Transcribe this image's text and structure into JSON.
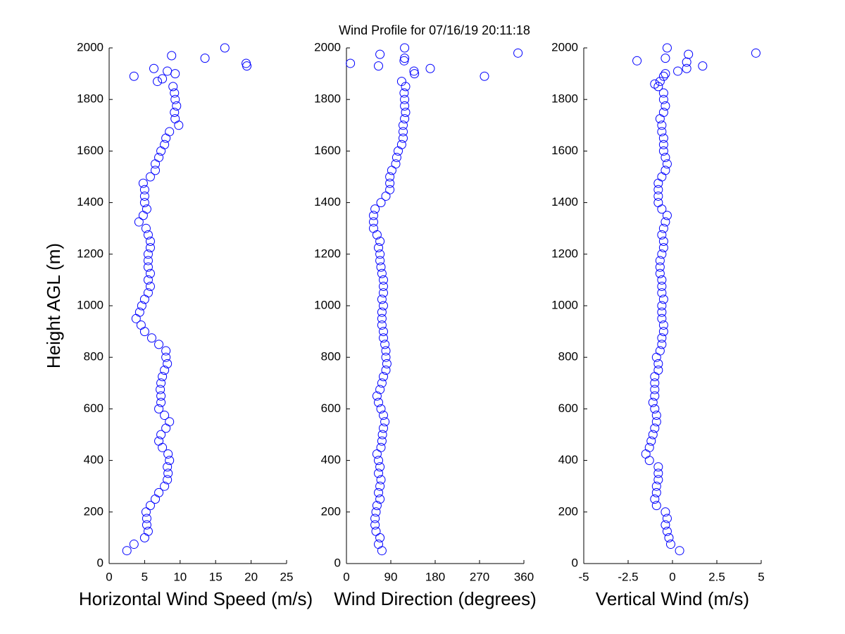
{
  "chart_data": [
    {
      "type": "scatter",
      "title": "Wind Profile for  07/16/19 20:11:18",
      "ylabel": "Height AGL (m)",
      "xlabel": "Horizontal Wind Speed (m/s)",
      "color": "#0000ff",
      "xlim": [
        0,
        25
      ],
      "xticks": [
        0,
        5,
        10,
        15,
        20,
        25
      ],
      "ylim": [
        0,
        2000
      ],
      "yticks": [
        0,
        200,
        400,
        600,
        800,
        1000,
        1200,
        1400,
        1600,
        1800,
        2000
      ],
      "x": [
        2.5,
        3.5,
        5,
        5.5,
        5.3,
        5.3,
        5.2,
        5.8,
        6.5,
        7,
        7.8,
        8.2,
        8.3,
        8.2,
        8.5,
        8.3,
        7.5,
        7,
        7.3,
        8,
        8.5,
        7.8,
        7,
        7.3,
        7.3,
        7.2,
        7.3,
        7.5,
        7.8,
        8.2,
        8,
        8,
        7,
        6,
        5,
        4.5,
        3.8,
        4.3,
        4.6,
        5,
        5.5,
        5.8,
        5.5,
        5.8,
        5.5,
        5.5,
        5.5,
        5.8,
        5.8,
        5.5,
        5.2,
        4.2,
        4.8,
        5.3,
        5,
        5,
        5,
        4.8,
        5.8,
        6.5,
        6.5,
        7,
        7.3,
        7.8,
        8,
        8.5,
        9.8,
        9.3,
        9.2,
        9.5,
        9.3,
        9.2,
        9,
        6.8,
        3.5,
        7.5,
        9.3,
        8.2,
        6.3,
        19.4,
        19.3,
        13.5,
        8.8,
        16.3
      ],
      "values": [
        50,
        75,
        100,
        125,
        150,
        175,
        200,
        225,
        250,
        275,
        300,
        325,
        350,
        375,
        400,
        425,
        450,
        475,
        500,
        525,
        550,
        575,
        600,
        625,
        650,
        675,
        700,
        725,
        750,
        775,
        800,
        825,
        850,
        875,
        900,
        925,
        950,
        975,
        1000,
        1025,
        1050,
        1075,
        1100,
        1125,
        1150,
        1175,
        1200,
        1225,
        1250,
        1275,
        1300,
        1325,
        1350,
        1375,
        1400,
        1425,
        1450,
        1475,
        1500,
        1525,
        1550,
        1575,
        1600,
        1625,
        1650,
        1675,
        1700,
        1725,
        1750,
        1775,
        1800,
        1825,
        1850,
        1870,
        1890,
        1880,
        1900,
        1910,
        1920,
        1930,
        1940,
        1960,
        1970,
        2000
      ]
    },
    {
      "type": "scatter",
      "xlabel": "Wind Direction (degrees)",
      "color": "#0000ff",
      "xlim": [
        0,
        360
      ],
      "xticks": [
        0,
        90,
        180,
        270,
        360
      ],
      "ylim": [
        0,
        2000
      ],
      "yticks": [
        0,
        200,
        400,
        600,
        800,
        1000,
        1200,
        1400,
        1600,
        1800,
        2000
      ],
      "x": [
        72,
        65,
        68,
        60,
        58,
        58,
        60,
        62,
        68,
        65,
        68,
        70,
        65,
        68,
        65,
        62,
        70,
        72,
        73,
        75,
        78,
        75,
        70,
        65,
        62,
        68,
        72,
        75,
        80,
        82,
        80,
        80,
        78,
        75,
        75,
        72,
        72,
        72,
        75,
        72,
        75,
        75,
        75,
        72,
        70,
        68,
        68,
        65,
        68,
        62,
        55,
        55,
        55,
        58,
        70,
        80,
        88,
        88,
        88,
        92,
        100,
        102,
        105,
        112,
        115,
        115,
        115,
        118,
        120,
        118,
        118,
        117,
        120,
        112,
        280,
        137,
        138,
        170,
        65,
        8,
        117,
        118,
        68,
        348,
        118
      ],
      "values": [
        50,
        75,
        100,
        125,
        150,
        175,
        200,
        225,
        250,
        275,
        300,
        325,
        350,
        375,
        400,
        425,
        450,
        475,
        500,
        525,
        550,
        575,
        600,
        625,
        650,
        675,
        700,
        725,
        750,
        775,
        800,
        825,
        850,
        875,
        900,
        925,
        950,
        975,
        1000,
        1025,
        1050,
        1075,
        1100,
        1125,
        1150,
        1175,
        1200,
        1225,
        1250,
        1275,
        1300,
        1325,
        1350,
        1375,
        1400,
        1425,
        1450,
        1475,
        1500,
        1525,
        1550,
        1575,
        1600,
        1625,
        1650,
        1675,
        1700,
        1725,
        1750,
        1775,
        1800,
        1825,
        1850,
        1870,
        1890,
        1910,
        1900,
        1920,
        1930,
        1940,
        1950,
        1960,
        1975,
        1980,
        2000
      ]
    },
    {
      "type": "scatter",
      "xlabel": "Vertical Wind (m/s)",
      "color": "#0000ff",
      "xlim": [
        -5,
        5
      ],
      "xticks": [
        -5,
        -2.5,
        0,
        2.5,
        5
      ],
      "ylim": [
        0,
        2000
      ],
      "yticks": [
        0,
        200,
        400,
        600,
        800,
        1000,
        1200,
        1400,
        1600,
        1800,
        2000
      ],
      "x": [
        0.4,
        -0.1,
        -0.2,
        -0.3,
        -0.4,
        -0.3,
        -0.4,
        -0.9,
        -1,
        -0.9,
        -0.9,
        -0.8,
        -0.8,
        -0.8,
        -1.3,
        -1.5,
        -1.3,
        -1.2,
        -1.1,
        -1,
        -0.9,
        -0.9,
        -1,
        -1.1,
        -1,
        -1,
        -1,
        -1,
        -0.8,
        -0.8,
        -0.9,
        -0.7,
        -0.6,
        -0.6,
        -0.5,
        -0.5,
        -0.6,
        -0.6,
        -0.6,
        -0.5,
        -0.6,
        -0.6,
        -0.6,
        -0.7,
        -0.7,
        -0.7,
        -0.6,
        -0.5,
        -0.5,
        -0.6,
        -0.5,
        -0.4,
        -0.3,
        -0.6,
        -0.8,
        -0.8,
        -0.8,
        -0.8,
        -0.6,
        -0.4,
        -0.3,
        -0.4,
        -0.5,
        -0.5,
        -0.5,
        -0.6,
        -0.6,
        -0.7,
        -0.5,
        -0.4,
        -0.5,
        -0.5,
        -0.8,
        -1,
        -0.7,
        -0.5,
        -0.4,
        0.3,
        0.8,
        1.7,
        0.8,
        -2,
        -0.4,
        0.9,
        4.7,
        -0.3
      ],
      "values": [
        50,
        75,
        100,
        125,
        150,
        175,
        200,
        225,
        250,
        275,
        300,
        325,
        350,
        375,
        400,
        425,
        450,
        475,
        500,
        525,
        550,
        575,
        600,
        625,
        650,
        675,
        700,
        725,
        750,
        775,
        800,
        825,
        850,
        875,
        900,
        925,
        950,
        975,
        1000,
        1025,
        1050,
        1075,
        1100,
        1125,
        1150,
        1175,
        1200,
        1225,
        1250,
        1275,
        1300,
        1325,
        1350,
        1375,
        1400,
        1425,
        1450,
        1475,
        1500,
        1525,
        1550,
        1575,
        1600,
        1625,
        1650,
        1675,
        1700,
        1725,
        1750,
        1775,
        1800,
        1825,
        1850,
        1860,
        1870,
        1890,
        1900,
        1910,
        1920,
        1930,
        1945,
        1950,
        1960,
        1975,
        1980,
        2000
      ]
    }
  ]
}
